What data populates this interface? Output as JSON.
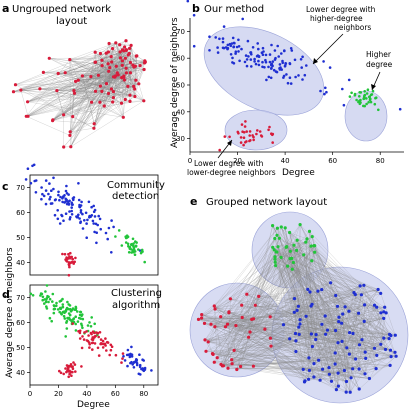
{
  "colors": {
    "red": "#d81b3a",
    "blue": "#1f2fd1",
    "green": "#22c43a",
    "halo": "#c8cdee",
    "edge": "#8a8a8a"
  },
  "panels": {
    "a": {
      "letter": "a",
      "title_line1": "Ungrouped network",
      "title_line2": "layout"
    },
    "b": {
      "letter": "b",
      "title": "Our method",
      "xlabel": "Degree",
      "ylabel": "Average degree of neighbors",
      "xticks": [
        "0",
        "20",
        "40",
        "60",
        "80"
      ],
      "yticks": [
        "30",
        "40",
        "50",
        "60",
        "70"
      ],
      "annot_blue_1": "Lower degree with",
      "annot_blue_2": "higher-degree",
      "annot_blue_3": "neighbors",
      "annot_green_1": "Higher",
      "annot_green_2": "degree",
      "annot_red_1": "Lower degree with",
      "annot_red_2": "lower-degree neighbors"
    },
    "c": {
      "letter": "c",
      "title_line1": "Community",
      "title_line2": "detection",
      "yticks": [
        "40",
        "50",
        "60",
        "70"
      ]
    },
    "d": {
      "letter": "d",
      "title_line1": "Clustering",
      "title_line2": "algorithm",
      "xlabel": "Degree",
      "ylabel": "Average degree of neighbors",
      "xticks": [
        "0",
        "20",
        "40",
        "60",
        "80"
      ],
      "yticks": [
        "40",
        "50",
        "60",
        "70"
      ]
    },
    "e": {
      "letter": "e",
      "title": "Grouped network layout"
    }
  },
  "chart_data": [
    {
      "type": "scatter",
      "panel": "b",
      "xlim": [
        0,
        90
      ],
      "ylim": [
        25,
        75
      ],
      "series": [
        {
          "color": "blue",
          "clusters": [
            {
              "cx": 30,
              "cy": 60,
              "sx": 15,
              "sy": 6,
              "n": 140,
              "trend": -0.35
            }
          ]
        },
        {
          "color": "green",
          "clusters": [
            {
              "cx": 74,
              "cy": 45,
              "sx": 3,
              "sy": 3,
              "n": 40,
              "trend": 0
            }
          ]
        },
        {
          "color": "red",
          "clusters": [
            {
              "cx": 26,
              "cy": 32,
              "sx": 5,
              "sy": 3,
              "n": 35,
              "trend": 0
            }
          ]
        }
      ]
    },
    {
      "type": "scatter",
      "panel": "c",
      "xlim": [
        0,
        90
      ],
      "ylim": [
        35,
        75
      ],
      "series": [
        {
          "color": "blue",
          "clusters": [
            {
              "cx": 30,
              "cy": 62,
              "sx": 15,
              "sy": 6,
              "n": 120,
              "trend": -0.35
            }
          ]
        },
        {
          "color": "green",
          "clusters": [
            {
              "cx": 72,
              "cy": 46,
              "sx": 5,
              "sy": 3,
              "n": 40,
              "trend": -0.3
            }
          ]
        },
        {
          "color": "red",
          "clusters": [
            {
              "cx": 28,
              "cy": 41,
              "sx": 3,
              "sy": 2.5,
              "n": 30,
              "trend": 0
            }
          ]
        }
      ]
    },
    {
      "type": "scatter",
      "panel": "d",
      "xlim": [
        0,
        90
      ],
      "ylim": [
        35,
        75
      ],
      "series": [
        {
          "color": "green",
          "clusters": [
            {
              "cx": 25,
              "cy": 64,
              "sx": 10,
              "sy": 5,
              "n": 110,
              "trend": -0.3
            }
          ]
        },
        {
          "color": "red",
          "clusters": [
            {
              "cx": 47,
              "cy": 53,
              "sx": 8,
              "sy": 4,
              "n": 60,
              "trend": -0.3
            },
            {
              "cx": 28,
              "cy": 41,
              "sx": 3,
              "sy": 2.5,
              "n": 30,
              "trend": 0
            }
          ]
        },
        {
          "color": "blue",
          "clusters": [
            {
              "cx": 75,
              "cy": 44,
              "sx": 4,
              "sy": 3,
              "n": 40,
              "trend": -0.3
            }
          ]
        }
      ]
    }
  ]
}
